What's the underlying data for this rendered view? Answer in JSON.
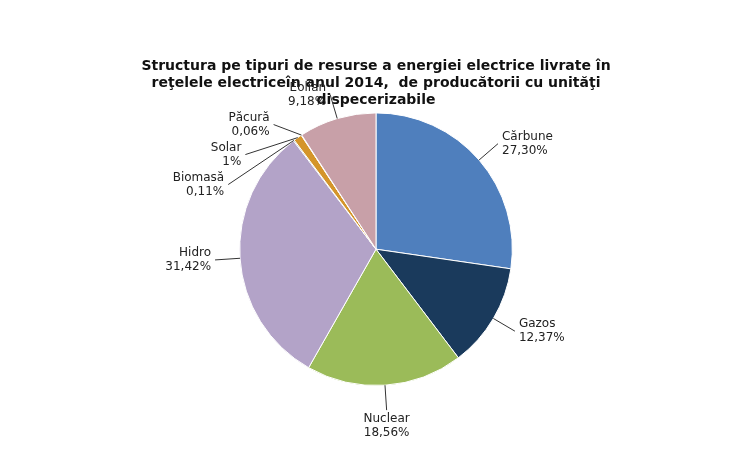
{
  "chart_data": {
    "type": "pie",
    "title": "Structura pe tipuri de resurse a energiei electrice livrate în\nreţelele electriceîn anul 2014,  de producătorii cu unităţi\ndispecerizabile",
    "categories": [
      "Cărbune",
      "Gazos",
      "Nuclear",
      "Hidro",
      "Biomasă",
      "Solar",
      "Păcură",
      "Eolian"
    ],
    "values": [
      27.3,
      12.37,
      18.56,
      31.42,
      0.11,
      1.0,
      0.06,
      9.18
    ],
    "value_labels": [
      "27,30%",
      "12,37%",
      "18,56%",
      "31,42%",
      "0,11%",
      "1%",
      "0,06%",
      "9,18%"
    ],
    "colors": [
      "#4F7FBD",
      "#1A3A5C",
      "#9BBB59",
      "#B3A3C8",
      "#1F5C5C",
      "#D4952A",
      "#C8887A",
      "#C8A0A8"
    ],
    "data_labels": true
  }
}
